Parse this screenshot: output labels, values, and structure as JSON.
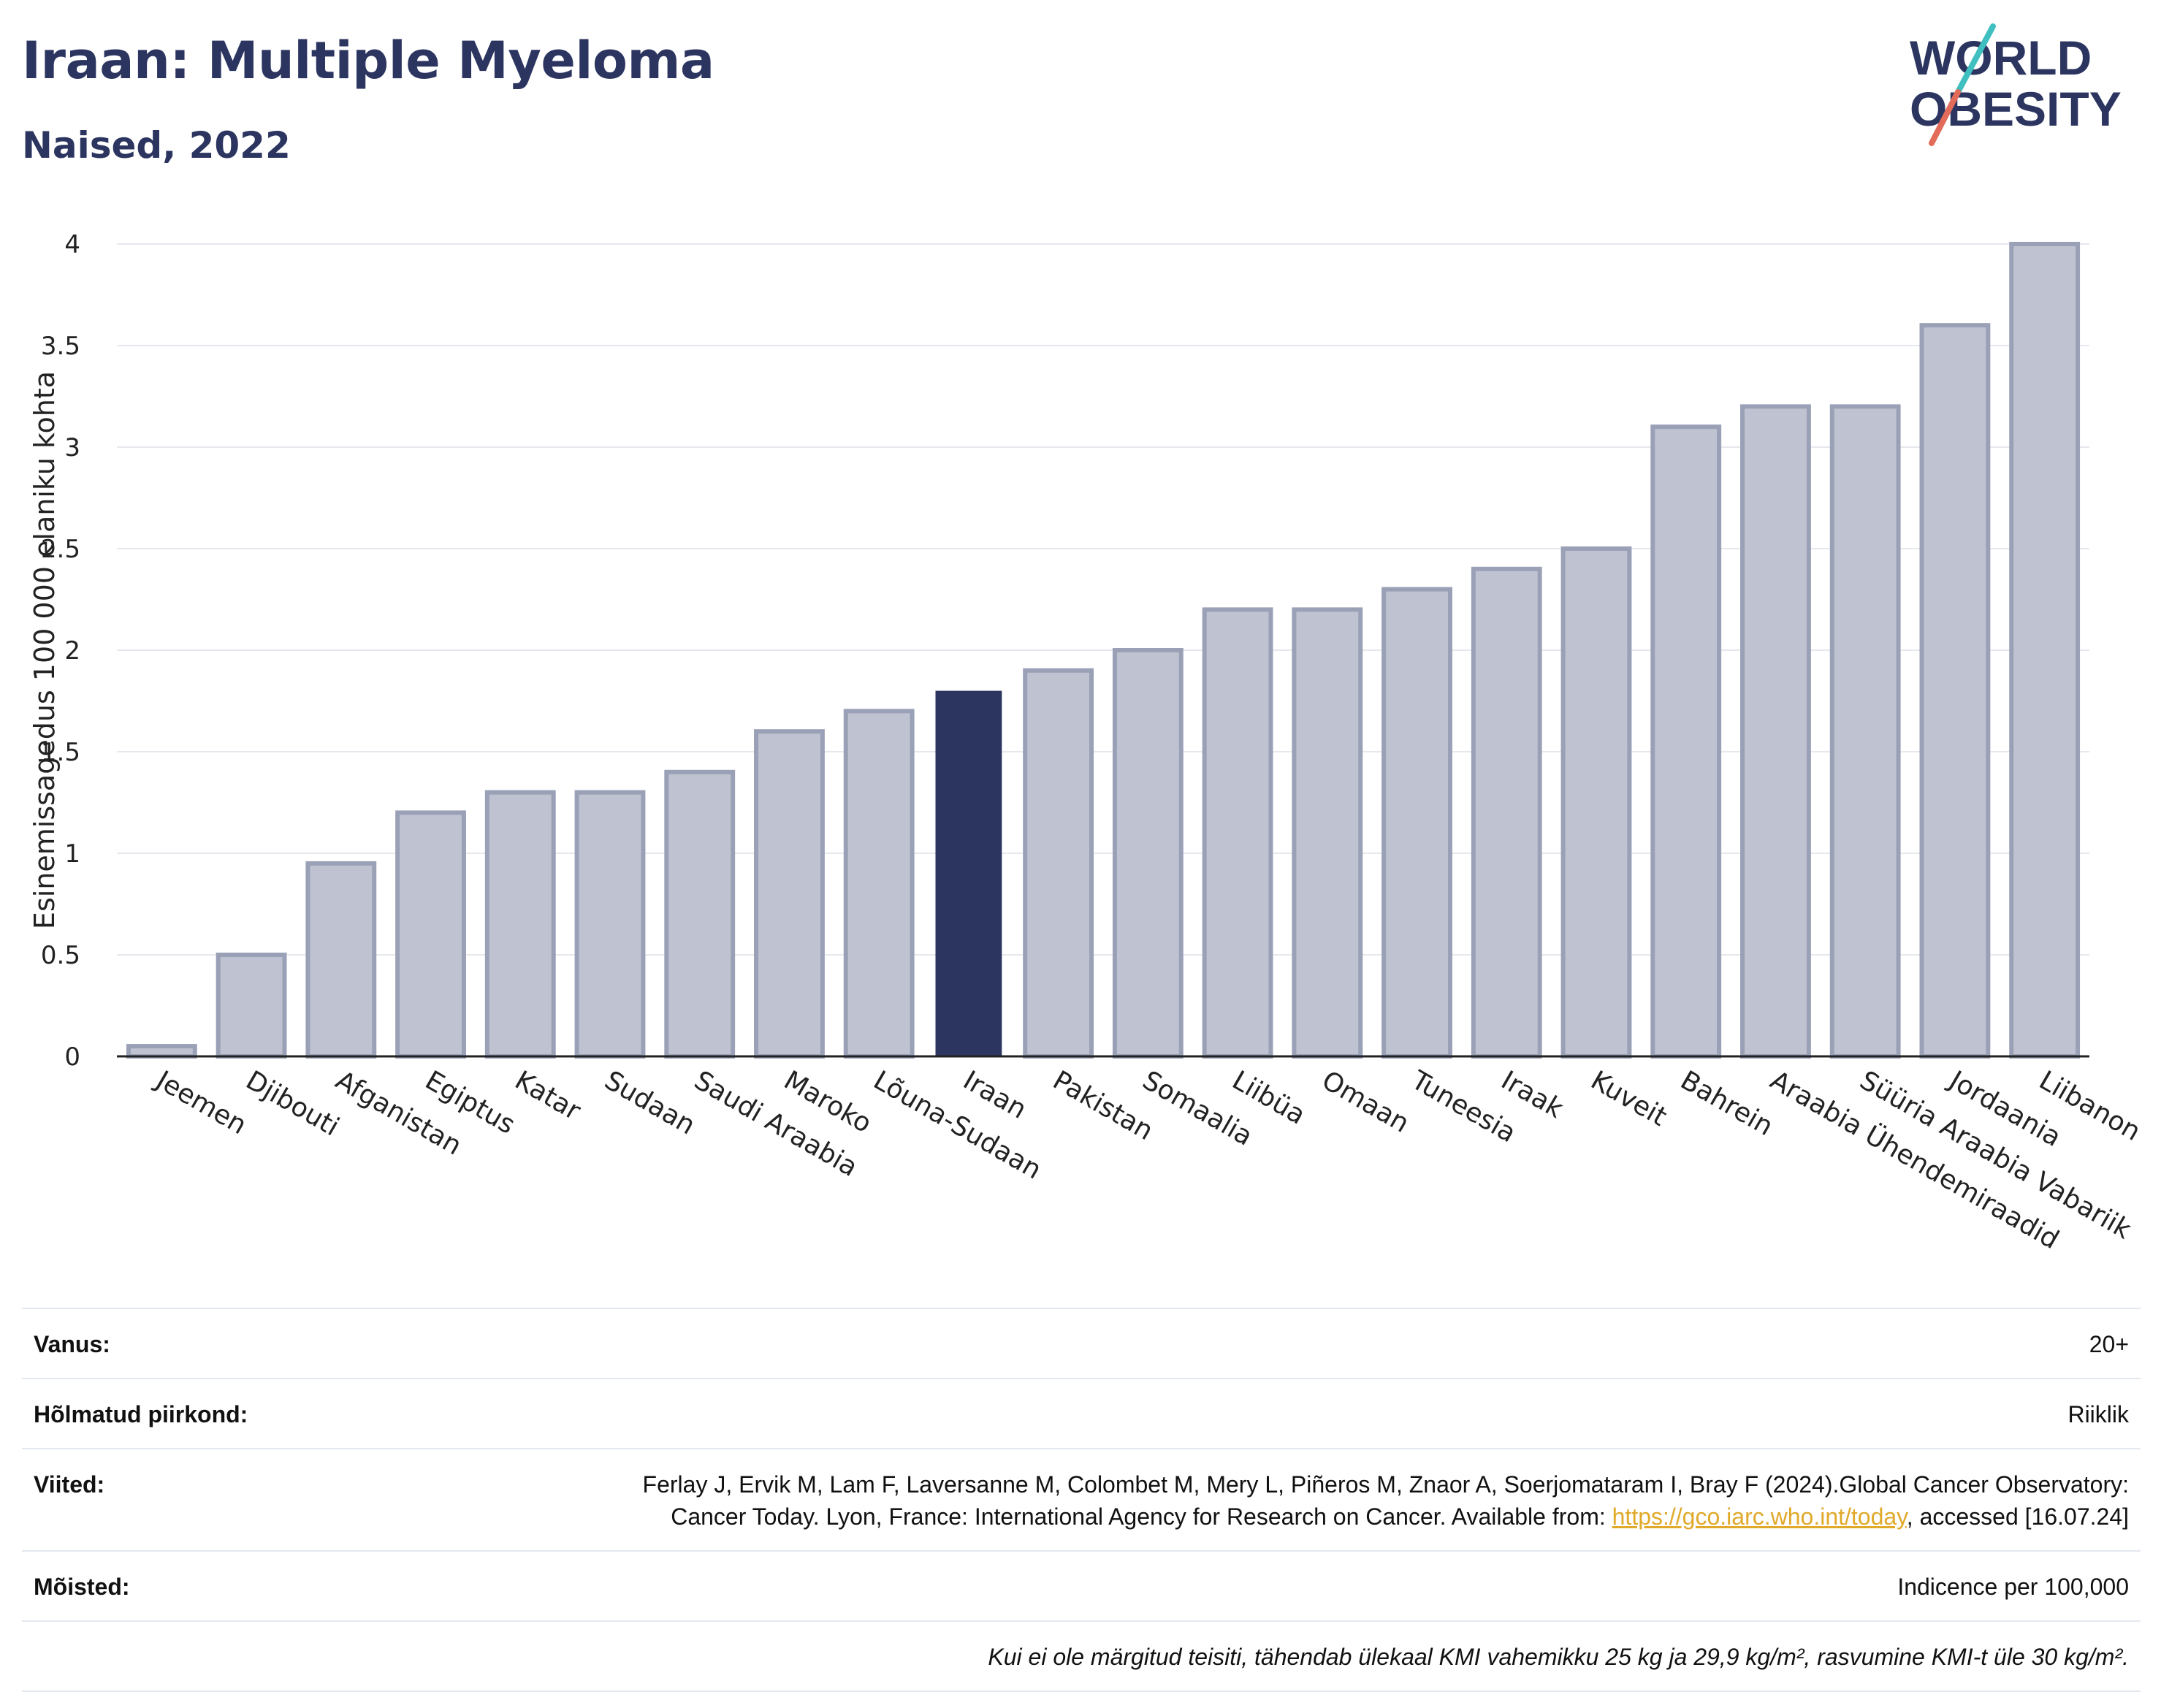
{
  "header": {
    "title": "Iraan: Multiple Myeloma",
    "subtitle": "Naised, 2022"
  },
  "logo": {
    "line1": "WORLD",
    "line2": "OBESITY",
    "colors": {
      "text": "#2b3560",
      "slash_teal": "#3fbfbf",
      "slash_red": "#e36b5a"
    }
  },
  "colors": {
    "highlight_bar": "#2b3560",
    "other_bar_fill": "#bfc3d1",
    "other_bar_stroke": "#9aa0b6",
    "grid": "#e6e8ee",
    "axis": "#222222"
  },
  "chart_data": {
    "type": "bar",
    "title": "Iraan: Multiple Myeloma",
    "subtitle": "Naised, 2022",
    "ylabel": "Esinemissagedus 100 000 elaniku kohta",
    "xlabel": "",
    "ylim": [
      0,
      4
    ],
    "yticks": [
      "0",
      "0.5",
      "1",
      "1.5",
      "2",
      "2.5",
      "3",
      "3.5",
      "4"
    ],
    "grid": true,
    "highlight": "Iraan",
    "categories": [
      "Jeemen",
      "Djibouti",
      "Afganistan",
      "Egiptus",
      "Katar",
      "Sudaan",
      "Saudi Araabia",
      "Maroko",
      "Lõuna-Sudaan",
      "Iraan",
      "Pakistan",
      "Somaalia",
      "Liibüa",
      "Omaan",
      "Tuneesia",
      "Iraak",
      "Kuveit",
      "Bahrein",
      "Araabia Ühendemiraadid",
      "Süüria Araabia Vabariik",
      "Jordaania",
      "Liibanon"
    ],
    "values": [
      0.05,
      0.5,
      0.95,
      1.2,
      1.3,
      1.3,
      1.4,
      1.6,
      1.7,
      1.8,
      1.9,
      2.0,
      2.2,
      2.2,
      2.3,
      2.4,
      2.5,
      3.1,
      3.2,
      3.2,
      3.6,
      4.0
    ]
  },
  "meta": {
    "age_label": "Vanus:",
    "age_value": "20+",
    "coverage_label": "Hõlmatud piirkond:",
    "coverage_value": "Riiklik",
    "refs_label": "Viited:",
    "refs_text": "Ferlay J, Ervik M, Lam F, Laversanne M, Colombet M, Mery L, Piñeros M, Znaor A, Soerjomataram I, Bray F (2024).Global Cancer Observatory: Cancer Today. Lyon, France: International Agency for Research on Cancer. Available from: ",
    "refs_link": "https://gco.iarc.who.int/today",
    "refs_after": ", accessed [16.07.24]",
    "definitions_label": "Mõisted:",
    "definitions_value": "Indicence per 100,000",
    "note": "Kui ei ole märgitud teisiti, tähendab ülekaal KMI vahemikku 25 kg ja 29,9 kg/m², rasvumine KMI-t üle 30 kg/m²."
  }
}
